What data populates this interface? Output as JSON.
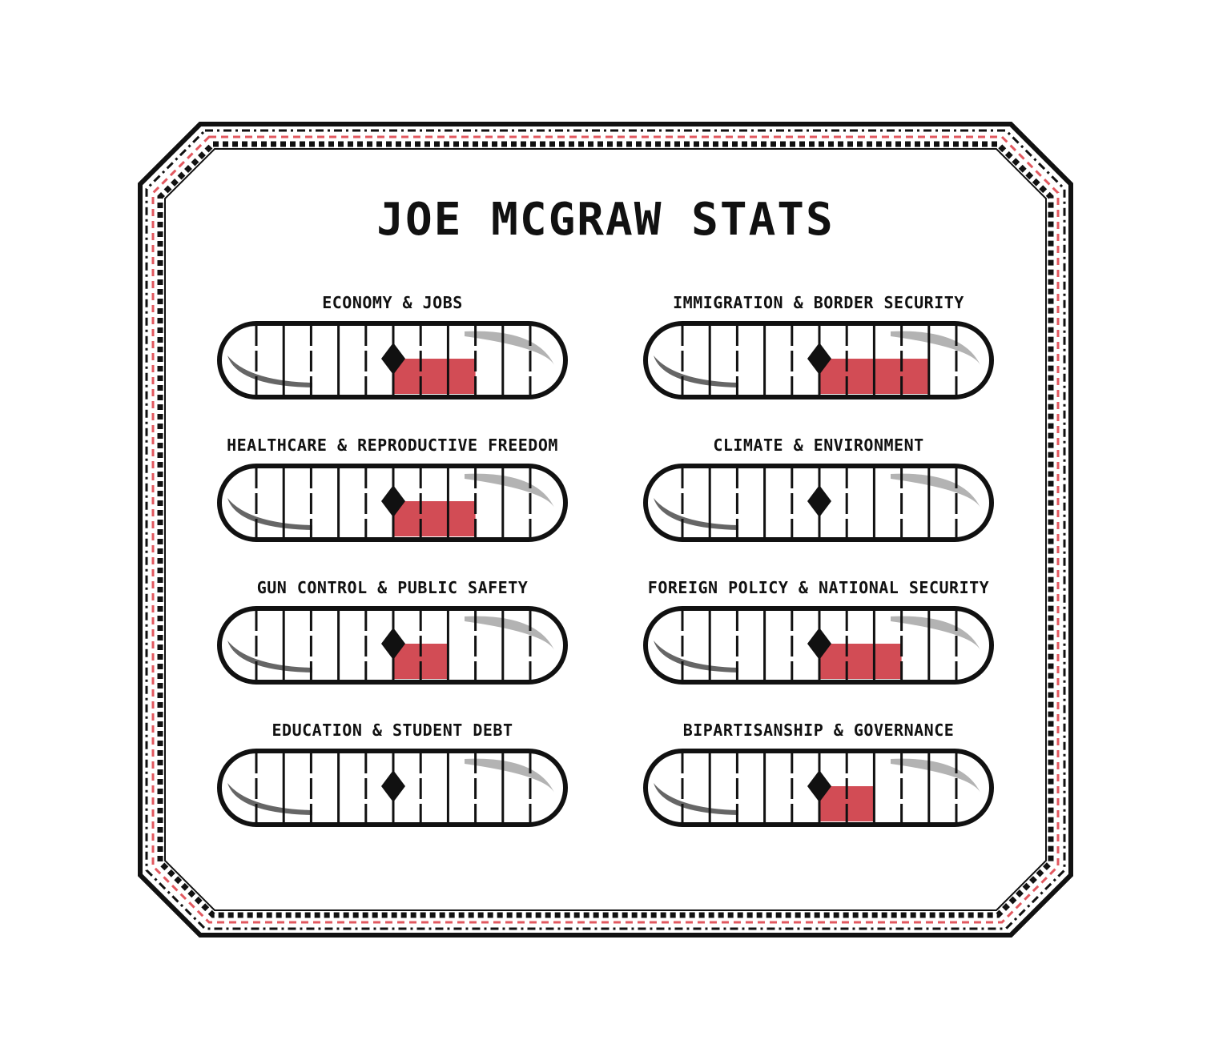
{
  "title": "JOE MCGRAW STATS",
  "colors": {
    "ink": "#111111",
    "fill": "#d24c55",
    "border_dash": "#e2585f",
    "shine": "#b3b3b3",
    "shadow": "#666666",
    "background": "#ffffff"
  },
  "meter_scale": {
    "min": -5,
    "max": 5,
    "segments": 10
  },
  "stats": [
    {
      "label": "ECONOMY & JOBS",
      "value": 3
    },
    {
      "label": "IMMIGRATION & BORDER SECURITY",
      "value": 4
    },
    {
      "label": "HEALTHCARE & REPRODUCTIVE FREEDOM",
      "value": 3
    },
    {
      "label": "CLIMATE & ENVIRONMENT",
      "value": 0
    },
    {
      "label": "GUN CONTROL & PUBLIC SAFETY",
      "value": 2
    },
    {
      "label": "FOREIGN POLICY & NATIONAL SECURITY",
      "value": 3
    },
    {
      "label": "EDUCATION & STUDENT DEBT",
      "value": 0
    },
    {
      "label": "BIPARTISANSHIP & GOVERNANCE",
      "value": 2
    }
  ]
}
